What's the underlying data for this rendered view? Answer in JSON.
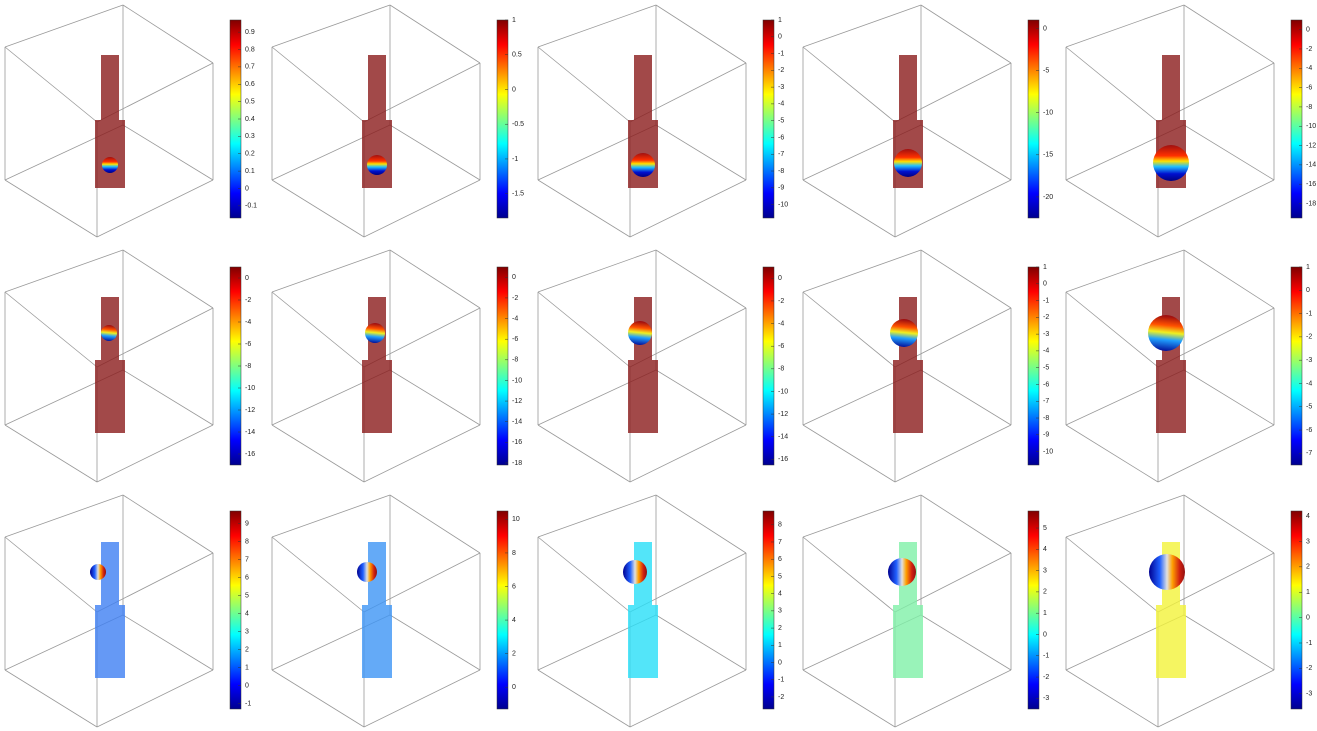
{
  "chart_data": [
    {
      "type": "volume",
      "color": "#8b1c1c",
      "ylim": [
        -0.17,
        0.97
      ],
      "yticks": [
        -0.1,
        0,
        0.1,
        0.2,
        0.3,
        0.4,
        0.5,
        0.6,
        0.7,
        0.8,
        0.9
      ]
    },
    {
      "type": "volume",
      "color": "#8b1c1c",
      "ylim": [
        -1.85,
        1
      ],
      "yticks": [
        -1.5,
        -1,
        -0.5,
        0,
        0.5,
        1
      ]
    },
    {
      "type": "volume",
      "color": "#8b1c1c",
      "ylim": [
        -10.8,
        1
      ],
      "yticks": [
        -10,
        -9,
        -8,
        -7,
        -6,
        -5,
        -4,
        -3,
        -2,
        -1,
        0,
        1
      ]
    },
    {
      "type": "volume",
      "color": "#8b1c1c",
      "ylim": [
        -22.5,
        1
      ],
      "yticks": [
        -20,
        -15,
        -10,
        -5,
        0
      ]
    },
    {
      "type": "volume",
      "color": "#8b1c1c",
      "ylim": [
        -19.5,
        1
      ],
      "yticks": [
        -18,
        -16,
        -14,
        -12,
        -10,
        -8,
        -6,
        -4,
        -2,
        0
      ]
    },
    {
      "type": "volume",
      "color": "#8b1c1c",
      "ylim": [
        -17,
        1
      ],
      "yticks": [
        -16,
        -14,
        -12,
        -10,
        -8,
        -6,
        -4,
        -2,
        0
      ]
    },
    {
      "type": "volume",
      "color": "#8b1c1c",
      "ylim": [
        -18.2,
        1
      ],
      "yticks": [
        -18,
        -16,
        -14,
        -12,
        -10,
        -8,
        -6,
        -4,
        -2,
        0
      ]
    },
    {
      "type": "volume",
      "color": "#8b1c1c",
      "ylim": [
        -16.5,
        1
      ],
      "yticks": [
        -16,
        -14,
        -12,
        -10,
        -8,
        -6,
        -4,
        -2,
        0
      ]
    },
    {
      "type": "volume",
      "color": "#8b1c1c",
      "ylim": [
        -10.8,
        1
      ],
      "yticks": [
        -10,
        -9,
        -8,
        -7,
        -6,
        -5,
        -4,
        -3,
        -2,
        -1,
        0,
        1
      ]
    },
    {
      "type": "volume",
      "color": "#8b1c1c",
      "ylim": [
        -7.5,
        1
      ],
      "yticks": [
        -7,
        -6,
        -5,
        -4,
        -3,
        -2,
        -1,
        0,
        1
      ]
    },
    {
      "type": "volume",
      "color": "#3f7ff2",
      "ylim": [
        -1.3,
        9.7
      ],
      "yticks": [
        -1,
        0,
        1,
        2,
        3,
        4,
        5,
        6,
        7,
        8,
        9
      ]
    },
    {
      "type": "volume",
      "color": "#3d95f5",
      "ylim": [
        -1.3,
        10.5
      ],
      "yticks": [
        0,
        2,
        4,
        6,
        8,
        10
      ]
    },
    {
      "type": "volume",
      "color": "#28def8",
      "ylim": [
        -2.7,
        8.8
      ],
      "yticks": [
        -2,
        -1,
        0,
        1,
        2,
        3,
        4,
        5,
        6,
        7,
        8
      ]
    },
    {
      "type": "volume",
      "color": "#80f0a8",
      "ylim": [
        -3.5,
        5.8
      ],
      "yticks": [
        -3,
        -2,
        -1,
        0,
        1,
        2,
        3,
        4,
        5
      ]
    },
    {
      "type": "volume",
      "color": "#f2f23a",
      "ylim": [
        -3.6,
        4.2
      ],
      "yticks": [
        -3,
        -2,
        -1,
        0,
        1,
        2,
        3,
        4
      ]
    }
  ]
}
